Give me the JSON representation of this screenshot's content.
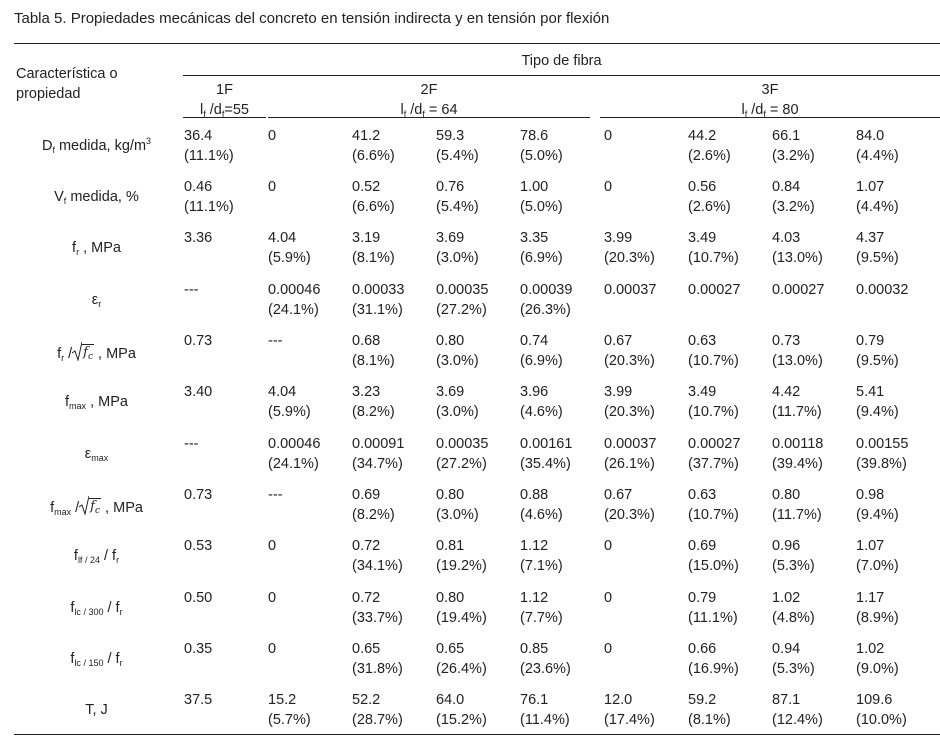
{
  "caption": "Tabla 5. Propiedades mecánicas del concreto en tensión indirecta y en tensión por flexión",
  "header": {
    "row_label": [
      "Característica o",
      "propiedad"
    ],
    "group_title": "Tipo de fibra",
    "groups": [
      {
        "name": "1F",
        "ratio_l": "l",
        "ratio_sub1": "f",
        "ratio_mid": " /d",
        "ratio_sub2": "f",
        "ratio_val": "=55"
      },
      {
        "name": "2F",
        "ratio_l": "l",
        "ratio_sub1": "f",
        "ratio_mid": " /d",
        "ratio_sub2": "f",
        "ratio_val": " = 64"
      },
      {
        "name": "3F",
        "ratio_l": "l",
        "ratio_sub1": "f",
        "ratio_mid": " /d",
        "ratio_sub2": "f",
        "ratio_val": " = 80"
      }
    ]
  },
  "labels": {
    "r0": {
      "base": "D",
      "sub": "f",
      "rest": " medida, kg/m",
      "sup": "3"
    },
    "r1": {
      "base": "V",
      "sub": "f",
      "rest": " medida, %"
    },
    "r2": {
      "base": "f",
      "sub": "r",
      "rest": " , MPa"
    },
    "r3": {
      "base": "ε",
      "sub": "r"
    },
    "r4": {
      "base": "f",
      "sub": "r",
      "slash": " /",
      "rad_base": "f",
      "rad_sub": "c",
      "rest": " , MPa"
    },
    "r5": {
      "base": "f",
      "sub": "max",
      "rest": " , MPa"
    },
    "r6": {
      "base": "ε",
      "sub": "max"
    },
    "r7": {
      "base": "f",
      "sub": "max",
      "slash": " /",
      "rad_base": "f",
      "rad_sub": "c",
      "rest": " , MPa"
    },
    "r8": {
      "base": "f",
      "sub": "lf / 24",
      "rest": " / f",
      "sub2": "r"
    },
    "r9": {
      "base": "f",
      "sub": "lc / 300",
      "rest": " / f",
      "sub2": "r"
    },
    "r10": {
      "base": "f",
      "sub": "lc / 150",
      "rest": " / f",
      "sub2": "r"
    },
    "r11": {
      "base": "T, J"
    }
  },
  "rows": [
    [
      [
        "36.4",
        "(11.1%)"
      ],
      [
        "0",
        ""
      ],
      [
        "41.2",
        "(6.6%)"
      ],
      [
        "59.3",
        "(5.4%)"
      ],
      [
        "78.6",
        "(5.0%)"
      ],
      [
        "0",
        ""
      ],
      [
        "44.2",
        "(2.6%)"
      ],
      [
        "66.1",
        "(3.2%)"
      ],
      [
        "84.0",
        "(4.4%)"
      ]
    ],
    [
      [
        "0.46",
        "(11.1%)"
      ],
      [
        "0",
        ""
      ],
      [
        "0.52",
        "(6.6%)"
      ],
      [
        "0.76",
        "(5.4%)"
      ],
      [
        "1.00",
        "(5.0%)"
      ],
      [
        "0",
        ""
      ],
      [
        "0.56",
        "(2.6%)"
      ],
      [
        "0.84",
        "(3.2%)"
      ],
      [
        "1.07",
        "(4.4%)"
      ]
    ],
    [
      [
        "3.36",
        ""
      ],
      [
        "4.04",
        "(5.9%)"
      ],
      [
        "3.19",
        "(8.1%)"
      ],
      [
        "3.69",
        "(3.0%)"
      ],
      [
        "3.35",
        "(6.9%)"
      ],
      [
        "3.99",
        "(20.3%)"
      ],
      [
        "3.49",
        "(10.7%)"
      ],
      [
        "4.03",
        "(13.0%)"
      ],
      [
        "4.37",
        "(9.5%)"
      ]
    ],
    [
      [
        "---",
        ""
      ],
      [
        "0.00046",
        "(24.1%)"
      ],
      [
        "0.00033",
        "(31.1%)"
      ],
      [
        "0.00035",
        "(27.2%)"
      ],
      [
        "0.00039",
        "(26.3%)"
      ],
      [
        "0.00037",
        ""
      ],
      [
        "0.00027",
        ""
      ],
      [
        "0.00027",
        ""
      ],
      [
        "0.00032",
        ""
      ]
    ],
    [
      [
        "0.73",
        ""
      ],
      [
        "---",
        ""
      ],
      [
        "0.68",
        "(8.1%)"
      ],
      [
        "0.80",
        "(3.0%)"
      ],
      [
        "0.74",
        "(6.9%)"
      ],
      [
        "0.67",
        "(20.3%)"
      ],
      [
        "0.63",
        "(10.7%)"
      ],
      [
        "0.73",
        "(13.0%)"
      ],
      [
        "0.79",
        "(9.5%)"
      ]
    ],
    [
      [
        "3.40",
        ""
      ],
      [
        "4.04",
        "(5.9%)"
      ],
      [
        "3.23",
        "(8.2%)"
      ],
      [
        "3.69",
        "(3.0%)"
      ],
      [
        "3.96",
        "(4.6%)"
      ],
      [
        "3.99",
        "(20.3%)"
      ],
      [
        "3.49",
        "(10.7%)"
      ],
      [
        "4.42",
        "(11.7%)"
      ],
      [
        "5.41",
        "(9.4%)"
      ]
    ],
    [
      [
        "---",
        ""
      ],
      [
        "0.00046",
        "(24.1%)"
      ],
      [
        "0.00091",
        "(34.7%)"
      ],
      [
        "0.00035",
        "(27.2%)"
      ],
      [
        "0.00161",
        "(35.4%)"
      ],
      [
        "0.00037",
        "(26.1%)"
      ],
      [
        "0.00027",
        "(37.7%)"
      ],
      [
        "0.00118",
        "(39.4%)"
      ],
      [
        "0.00155",
        "(39.8%)"
      ]
    ],
    [
      [
        "0.73",
        ""
      ],
      [
        "---",
        ""
      ],
      [
        "0.69",
        "(8.2%)"
      ],
      [
        "0.80",
        "(3.0%)"
      ],
      [
        "0.88",
        "(4.6%)"
      ],
      [
        "0.67",
        "(20.3%)"
      ],
      [
        "0.63",
        "(10.7%)"
      ],
      [
        "0.80",
        "(11.7%)"
      ],
      [
        "0.98",
        "(9.4%)"
      ]
    ],
    [
      [
        "0.53",
        ""
      ],
      [
        "0",
        ""
      ],
      [
        "0.72",
        "(34.1%)"
      ],
      [
        "0.81",
        "(19.2%)"
      ],
      [
        "1.12",
        "(7.1%)"
      ],
      [
        "0",
        ""
      ],
      [
        "0.69",
        "(15.0%)"
      ],
      [
        "0.96",
        "(5.3%)"
      ],
      [
        "1.07",
        "(7.0%)"
      ]
    ],
    [
      [
        "0.50",
        ""
      ],
      [
        "0",
        ""
      ],
      [
        "0.72",
        "(33.7%)"
      ],
      [
        "0.80",
        "(19.4%)"
      ],
      [
        "1.12",
        "(7.7%)"
      ],
      [
        "0",
        ""
      ],
      [
        "0.79",
        "(11.1%)"
      ],
      [
        "1.02",
        "(4.8%)"
      ],
      [
        "1.17",
        "(8.9%)"
      ]
    ],
    [
      [
        "0.35",
        ""
      ],
      [
        "0",
        ""
      ],
      [
        "0.65",
        "(31.8%)"
      ],
      [
        "0.65",
        "(26.4%)"
      ],
      [
        "0.85",
        "(23.6%)"
      ],
      [
        "0",
        ""
      ],
      [
        "0.66",
        "(16.9%)"
      ],
      [
        "0.94",
        "(5.3%)"
      ],
      [
        "1.02",
        "(9.0%)"
      ]
    ],
    [
      [
        "37.5",
        ""
      ],
      [
        "15.2",
        "(5.7%)"
      ],
      [
        "52.2",
        "(28.7%)"
      ],
      [
        "64.0",
        "(15.2%)"
      ],
      [
        "76.1",
        "(11.4%)"
      ],
      [
        "12.0",
        "(17.4%)"
      ],
      [
        "59.2",
        "(8.1%)"
      ],
      [
        "87.1",
        "(12.4%)"
      ],
      [
        "109.6",
        "(10.0%)"
      ]
    ]
  ]
}
